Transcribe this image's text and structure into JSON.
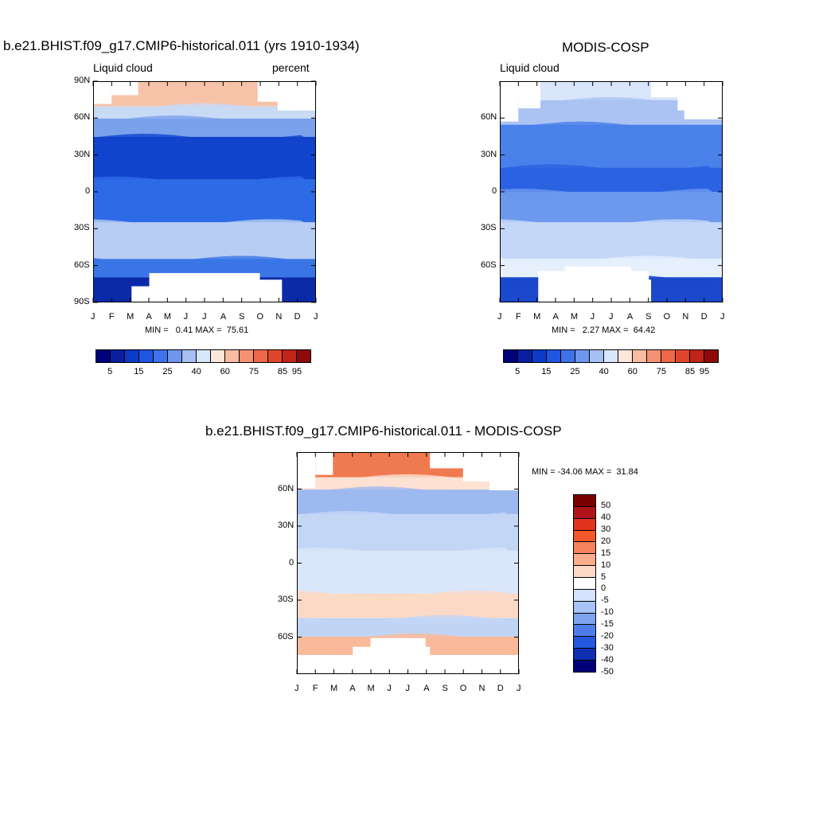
{
  "chart_data": [
    {
      "type": "heatmap",
      "title": "b.e21.BHIST.f09_g17.CMIP6-historical.011 (yrs 1910-1934)",
      "left_label": "Liquid cloud",
      "right_label": "percent",
      "months": [
        "J",
        "F",
        "M",
        "A",
        "M",
        "J",
        "J",
        "A",
        "S",
        "O",
        "N",
        "D",
        "J"
      ],
      "lat_labels": [
        "90N",
        "60N",
        "30N",
        "0",
        "30S",
        "60S",
        "90S"
      ],
      "min_label": "MIN =   0.41 MAX =  75.61",
      "min": 0.41,
      "max": 75.61,
      "colorbar_labels": [
        "5",
        "15",
        "25",
        "40",
        "60",
        "75",
        "85",
        "95"
      ],
      "bands": [
        {
          "lat": "90N-70N",
          "value": 55,
          "color": "#f6c3a8"
        },
        {
          "lat": "70N-60N",
          "value": 42,
          "color": "#c9daf5"
        },
        {
          "lat": "60N-45N",
          "value": 28,
          "color": "#7aa2ec"
        },
        {
          "lat": "45N-10N",
          "value": 12,
          "color": "#1144cc"
        },
        {
          "lat": "10N-25S",
          "value": 18,
          "color": "#2d6ae6"
        },
        {
          "lat": "25S-55S",
          "value": 38,
          "color": "#b7cdf3"
        },
        {
          "lat": "55S-70S",
          "value": 20,
          "color": "#3a75e6"
        },
        {
          "lat": "70S-90S",
          "value": 8,
          "color": "#0a2aa8"
        }
      ]
    },
    {
      "type": "heatmap",
      "title": "MODIS-COSP",
      "left_label": "Liquid cloud",
      "months": [
        "J",
        "F",
        "M",
        "A",
        "M",
        "J",
        "J",
        "A",
        "S",
        "O",
        "N",
        "D",
        "J"
      ],
      "lat_labels": [
        "60N",
        "30N",
        "0",
        "30S",
        "60S"
      ],
      "min_label": "MIN =   2.27 MAX =  64.42",
      "min": 2.27,
      "max": 64.42,
      "colorbar_labels": [
        "5",
        "15",
        "25",
        "40",
        "60",
        "75",
        "85",
        "95"
      ],
      "bands": [
        {
          "lat": "90N-75N",
          "value": 45,
          "color": "#d8e5fa"
        },
        {
          "lat": "75N-55N",
          "value": 38,
          "color": "#aac3f2"
        },
        {
          "lat": "55N-20N",
          "value": 20,
          "color": "#4a80ea"
        },
        {
          "lat": "20N-0",
          "value": 15,
          "color": "#2a62e2"
        },
        {
          "lat": "0-25S",
          "value": 25,
          "color": "#6c98ee"
        },
        {
          "lat": "25S-55S",
          "value": 40,
          "color": "#c4d7f7"
        },
        {
          "lat": "55S-70S",
          "value": 48,
          "color": "#e6effc"
        },
        {
          "lat": "70S-90S",
          "value": 10,
          "color": "#1a49cc"
        }
      ]
    },
    {
      "type": "heatmap",
      "title": "b.e21.BHIST.f09_g17.CMIP6-historical.011 - MODIS-COSP",
      "months": [
        "J",
        "F",
        "M",
        "A",
        "M",
        "J",
        "J",
        "A",
        "S",
        "O",
        "N",
        "D",
        "J"
      ],
      "lat_labels": [
        "60N",
        "30N",
        "0",
        "30S",
        "60S"
      ],
      "min_label": "MIN = -34.06 MAX =  31.84",
      "min": -34.06,
      "max": 31.84,
      "colorbar_labels": [
        "50",
        "40",
        "30",
        "20",
        "15",
        "10",
        "5",
        "0",
        "-5",
        "-10",
        "-15",
        "-20",
        "-30",
        "-40",
        "-50"
      ],
      "bands": [
        {
          "lat": "90N-70N",
          "value": 20,
          "color": "#f07a50"
        },
        {
          "lat": "70N-60N",
          "value": 5,
          "color": "#fde1d2"
        },
        {
          "lat": "60N-40N",
          "value": -10,
          "color": "#9cb9f0"
        },
        {
          "lat": "40N-10N",
          "value": -5,
          "color": "#c4d6f6"
        },
        {
          "lat": "10N-25S",
          "value": -3,
          "color": "#dae6fa"
        },
        {
          "lat": "25S-45S",
          "value": 5,
          "color": "#fbd9c6"
        },
        {
          "lat": "45S-60S",
          "value": -5,
          "color": "#c0d4f6"
        },
        {
          "lat": "60S-75S",
          "value": 10,
          "color": "#f9b99a"
        }
      ]
    }
  ],
  "colorbars": {
    "abs": [
      "#00007a",
      "#0a1fa0",
      "#0c3bc8",
      "#1f55e0",
      "#3f71ea",
      "#6f96ef",
      "#a6c0f4",
      "#d8e6fb",
      "#fde7da",
      "#f9bca3",
      "#f59273",
      "#ee6849",
      "#e0452c",
      "#c22419",
      "#8e0a0a"
    ],
    "diff": [
      "#7a0000",
      "#b0141a",
      "#e0321c",
      "#f2582b",
      "#f5825c",
      "#f9ad8b",
      "#fddac6",
      "#ffffff",
      "#d4e3fb",
      "#a8c3f5",
      "#7ea3ef",
      "#4f7de8",
      "#2257de",
      "#0f2eb0",
      "#00007a"
    ]
  }
}
